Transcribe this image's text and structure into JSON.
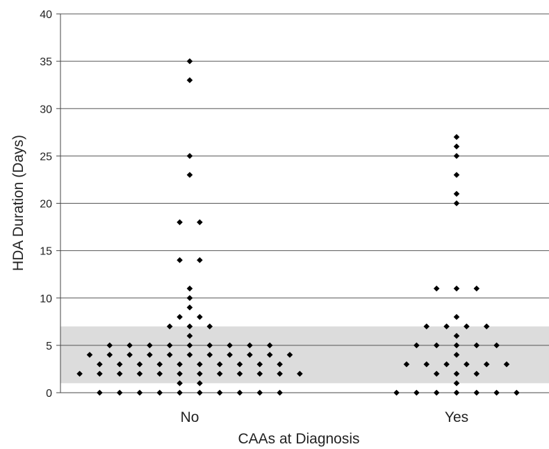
{
  "chart_data": {
    "type": "scatter",
    "title": "",
    "xlabel": "CAAs at Diagnosis",
    "ylabel": "HDA Duration (Days)",
    "categories": [
      "No",
      "Yes"
    ],
    "ylim": [
      0,
      40
    ],
    "yticks": [
      0,
      5,
      10,
      15,
      20,
      25,
      30,
      35,
      40
    ],
    "grid": true,
    "shaded_band": [
      1,
      7
    ],
    "colors": {
      "points": "#000000",
      "band": "#dcdcdc",
      "grid": "#555555",
      "axis": "#444444"
    },
    "series": [
      {
        "category": "No",
        "values": [
          35,
          33,
          25,
          23,
          18,
          18,
          14,
          14,
          11,
          10,
          9,
          8,
          8,
          7,
          7,
          7,
          6,
          5,
          5,
          5,
          5,
          5,
          5,
          5,
          5,
          5,
          4,
          4,
          4,
          4,
          4,
          4,
          4,
          4,
          4,
          4,
          4,
          3,
          3,
          3,
          3,
          3,
          3,
          3,
          3,
          3,
          3,
          2,
          2,
          2,
          2,
          2,
          2,
          2,
          2,
          2,
          2,
          2,
          2,
          1,
          1,
          0,
          0,
          0,
          0,
          0,
          0,
          0,
          0,
          0,
          0
        ]
      },
      {
        "category": "Yes",
        "values": [
          27,
          26,
          25,
          23,
          21,
          20,
          11,
          11,
          11,
          8,
          7,
          7,
          7,
          7,
          6,
          5,
          5,
          5,
          5,
          5,
          4,
          3,
          3,
          3,
          3,
          3,
          3,
          2,
          2,
          2,
          1,
          0,
          0,
          0,
          0,
          0,
          0,
          0
        ]
      }
    ]
  }
}
